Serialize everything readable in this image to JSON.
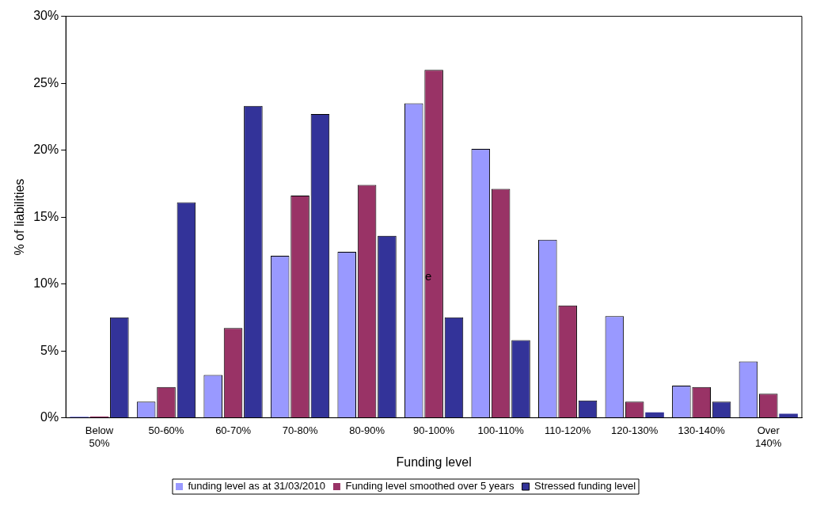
{
  "chart_data": {
    "type": "bar",
    "xlabel": "Funding level",
    "ylabel": "% of liabilities",
    "categories": [
      "Below 50%",
      "50-60%",
      "60-70%",
      "70-80%",
      "80-90%",
      "90-100%",
      "100-110%",
      "110-120%",
      "120-130%",
      "130-140%",
      "Over 140%"
    ],
    "series": [
      {
        "name": "funding level as at 31/03/2010",
        "color": "#9999ff",
        "values": [
          0.1,
          1.2,
          3.2,
          12.1,
          12.4,
          23.5,
          20.1,
          13.3,
          7.6,
          2.4,
          4.2
        ]
      },
      {
        "name": "Funding level smoothed over 5 years",
        "color": "#993366",
        "values": [
          0.1,
          2.3,
          6.7,
          16.6,
          17.4,
          26.0,
          17.1,
          8.4,
          1.2,
          2.3,
          1.8
        ]
      },
      {
        "name": "Stressed funding level",
        "color": "#333399",
        "values": [
          7.5,
          16.1,
          23.3,
          22.7,
          13.6,
          7.5,
          5.8,
          1.3,
          0.4,
          1.2,
          0.3
        ]
      }
    ],
    "ylim": [
      0,
      30
    ],
    "yticks": [
      {
        "value": 0,
        "label": "0%"
      },
      {
        "value": 5,
        "label": "5%"
      },
      {
        "value": 10,
        "label": "10%"
      },
      {
        "value": 15,
        "label": "15%"
      },
      {
        "value": 20,
        "label": "20%"
      },
      {
        "value": 25,
        "label": "25%"
      },
      {
        "value": 30,
        "label": "30%"
      }
    ],
    "annotations": [
      "e"
    ],
    "legend": "bottom",
    "grid": false
  }
}
